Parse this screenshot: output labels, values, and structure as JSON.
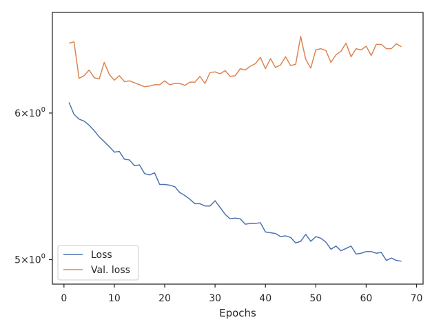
{
  "chart_data": {
    "type": "line",
    "title": "",
    "xlabel": "Epochs",
    "ylabel": "",
    "x_scale": "linear",
    "y_scale": "log",
    "xlim": [
      -2.3,
      71.3
    ],
    "ylim": [
      4.85,
      6.8
    ],
    "x_ticks": [
      0,
      10,
      20,
      30,
      40,
      50,
      60,
      70
    ],
    "x_tick_labels": [
      "0",
      "10",
      "20",
      "30",
      "40",
      "50",
      "60",
      "70"
    ],
    "y_ticks": [
      5,
      6
    ],
    "y_tick_labels": [
      {
        "base": "5",
        "exp": "0"
      },
      {
        "base": "6",
        "exp": "0"
      }
    ],
    "grid": false,
    "legend_position": "lower-left",
    "x": [
      1,
      2,
      3,
      4,
      5,
      6,
      7,
      8,
      9,
      10,
      11,
      12,
      13,
      14,
      15,
      16,
      17,
      18,
      19,
      20,
      21,
      22,
      23,
      24,
      25,
      26,
      27,
      28,
      29,
      30,
      31,
      32,
      33,
      34,
      35,
      36,
      37,
      38,
      39,
      40,
      41,
      42,
      43,
      44,
      45,
      46,
      47,
      48,
      49,
      50,
      51,
      52,
      53,
      54,
      55,
      56,
      57,
      58,
      59,
      60,
      61,
      62,
      63,
      64,
      65,
      66,
      67
    ],
    "series": [
      {
        "name": "Loss",
        "color": "#4c72b0",
        "values": [
          6.08,
          5.99,
          5.955,
          5.94,
          5.91,
          5.87,
          5.825,
          5.79,
          5.755,
          5.715,
          5.72,
          5.665,
          5.66,
          5.62,
          5.625,
          5.565,
          5.555,
          5.57,
          5.49,
          5.49,
          5.485,
          5.475,
          5.435,
          5.415,
          5.39,
          5.36,
          5.36,
          5.345,
          5.345,
          5.38,
          5.335,
          5.29,
          5.26,
          5.265,
          5.26,
          5.225,
          5.23,
          5.23,
          5.235,
          5.175,
          5.17,
          5.165,
          5.145,
          5.15,
          5.14,
          5.105,
          5.115,
          5.16,
          5.115,
          5.145,
          5.135,
          5.11,
          5.065,
          5.085,
          5.055,
          5.07,
          5.085,
          5.035,
          5.04,
          5.05,
          5.05,
          5.04,
          5.045,
          4.995,
          5.01,
          4.995,
          4.99
        ]
      },
      {
        "name": "Val. loss",
        "color": "#dd8452",
        "values": [
          6.545,
          6.555,
          6.265,
          6.285,
          6.33,
          6.27,
          6.26,
          6.39,
          6.295,
          6.25,
          6.285,
          6.24,
          6.245,
          6.23,
          6.215,
          6.2,
          6.205,
          6.215,
          6.215,
          6.245,
          6.215,
          6.225,
          6.225,
          6.21,
          6.235,
          6.235,
          6.28,
          6.225,
          6.31,
          6.315,
          6.3,
          6.325,
          6.28,
          6.285,
          6.34,
          6.33,
          6.36,
          6.38,
          6.43,
          6.34,
          6.42,
          6.35,
          6.37,
          6.435,
          6.365,
          6.375,
          6.6,
          6.415,
          6.345,
          6.49,
          6.5,
          6.485,
          6.39,
          6.45,
          6.48,
          6.545,
          6.435,
          6.5,
          6.49,
          6.52,
          6.445,
          6.535,
          6.535,
          6.5,
          6.5,
          6.54,
          6.515
        ]
      }
    ]
  }
}
